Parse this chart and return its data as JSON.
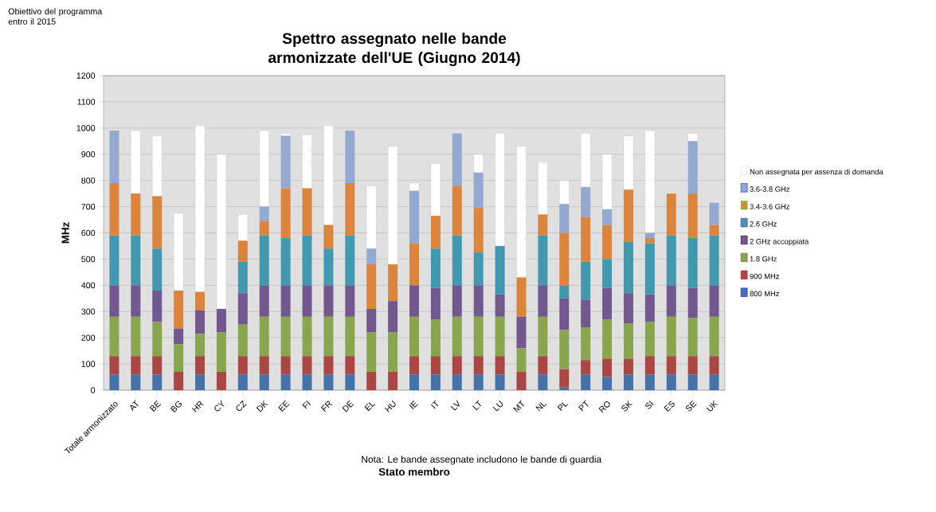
{
  "chart_data": {
    "type": "bar",
    "stacked": true,
    "title": "Spettro assegnato nelle bande armonizzate dell'UE (Giugno 2014)",
    "xlabel": "Stato membro",
    "ylabel": "MHz",
    "annotations": [
      "Obiettivo del programma entro il 2015",
      "Nota: Le bande assegnate includono le bande di guardia"
    ],
    "categories": [
      "Totale armonizzato",
      "AT",
      "BE",
      "BG",
      "HR",
      "CY",
      "CZ",
      "DK",
      "EE",
      "FI",
      "FR",
      "DE",
      "EL",
      "HU",
      "IE",
      "IT",
      "LV",
      "LT",
      "LU",
      "MT",
      "NL",
      "PL",
      "PT",
      "RO",
      "SK",
      "SI",
      "ES",
      "SE",
      "UK"
    ],
    "ylim": [
      0,
      1200
    ],
    "yticks": [
      0,
      100,
      200,
      300,
      400,
      500,
      600,
      700,
      800,
      900,
      1000,
      1100,
      1200
    ],
    "grid": "y",
    "legend": "right",
    "series": [
      {
        "name": "800 MHz",
        "color": "#4572a7",
        "values": [
          60,
          60,
          60,
          0,
          60,
          0,
          60,
          60,
          60,
          60,
          60,
          60,
          0,
          0,
          60,
          60,
          60,
          60,
          60,
          0,
          60,
          10,
          60,
          50,
          60,
          60,
          60,
          60,
          60
        ]
      },
      {
        "name": "900 MHz",
        "color": "#aa4643",
        "values": [
          70,
          70,
          70,
          70,
          70,
          70,
          70,
          70,
          70,
          70,
          70,
          70,
          70,
          70,
          70,
          70,
          70,
          70,
          70,
          70,
          70,
          70,
          55,
          70,
          60,
          70,
          70,
          70,
          70
        ]
      },
      {
        "name": "1.8 GHz",
        "color": "#89a54e",
        "values": [
          150,
          150,
          130,
          105,
          85,
          150,
          120,
          150,
          150,
          150,
          150,
          150,
          150,
          150,
          150,
          140,
          150,
          150,
          150,
          90,
          150,
          150,
          125,
          150,
          135,
          130,
          150,
          145,
          150
        ]
      },
      {
        "name": "2 GHz accoppiata",
        "color": "#71588f",
        "values": [
          120,
          120,
          120,
          60,
          90,
          90,
          120,
          120,
          120,
          120,
          120,
          120,
          90,
          120,
          120,
          120,
          120,
          120,
          85,
          120,
          120,
          120,
          105,
          120,
          115,
          105,
          120,
          115,
          120
        ]
      },
      {
        "name": "2.6 GHz",
        "color": "#4198af",
        "values": [
          190,
          190,
          160,
          0,
          0,
          0,
          120,
          190,
          180,
          190,
          140,
          190,
          0,
          0,
          0,
          150,
          190,
          125,
          185,
          0,
          190,
          50,
          145,
          110,
          195,
          195,
          190,
          190,
          190
        ]
      },
      {
        "name": "3.4-3.6 GHz",
        "color": "#db843d",
        "values": [
          200,
          160,
          200,
          145,
          70,
          0,
          80,
          55,
          190,
          180,
          90,
          200,
          170,
          140,
          160,
          125,
          190,
          170,
          0,
          150,
          80,
          200,
          170,
          130,
          200,
          20,
          160,
          170,
          40
        ]
      },
      {
        "name": "3.6-3.8 GHz",
        "color": "#93a9cf",
        "values": [
          200,
          0,
          0,
          0,
          0,
          0,
          0,
          55,
          200,
          0,
          0,
          200,
          60,
          0,
          200,
          0,
          200,
          135,
          0,
          0,
          0,
          110,
          115,
          60,
          0,
          20,
          0,
          200,
          85
        ]
      },
      {
        "name": "Non assegnata per assenza di domanda",
        "color": "#ffffff",
        "values": [
          0,
          240,
          230,
          295,
          635,
          590,
          100,
          290,
          10,
          205,
          380,
          0,
          240,
          450,
          30,
          200,
          0,
          70,
          430,
          500,
          200,
          90,
          205,
          210,
          205,
          390,
          0,
          30,
          0
        ]
      }
    ]
  }
}
